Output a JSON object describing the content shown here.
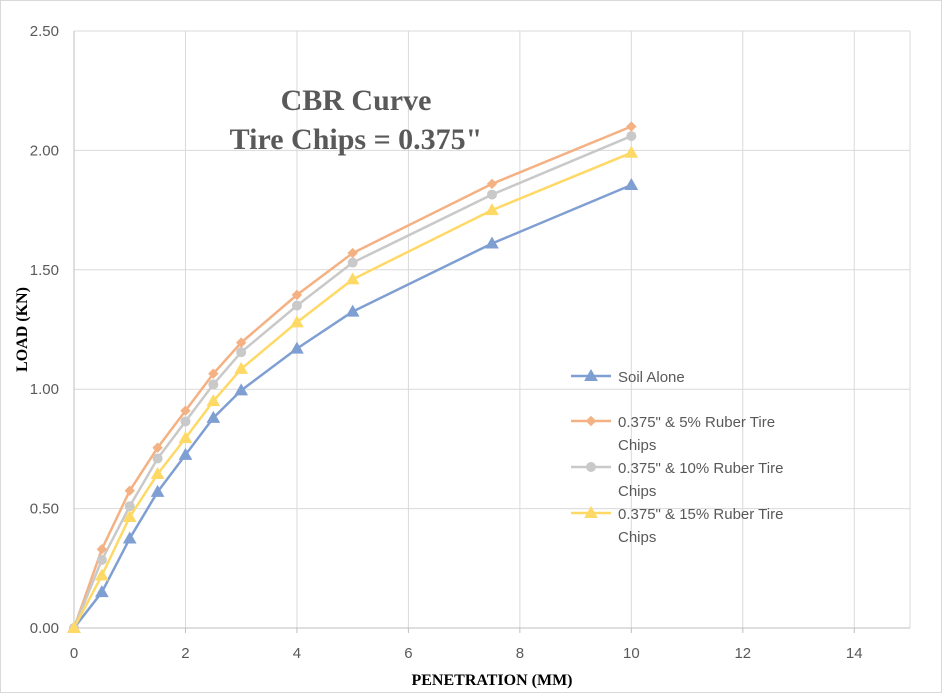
{
  "chart_data": {
    "type": "line",
    "title_lines": [
      "CBR Curve",
      "Tire Chips = 0.375\""
    ],
    "xlabel": "PENETRATION (MM)",
    "ylabel": "LOAD  (KN)",
    "xlim": [
      0,
      15
    ],
    "ylim": [
      0,
      2.5
    ],
    "x_ticks": [
      0,
      2,
      4,
      6,
      8,
      10,
      12,
      14
    ],
    "x_tick_labels": [
      "0",
      "2",
      "4",
      "6",
      "8",
      "10",
      "12",
      "14"
    ],
    "y_ticks": [
      0,
      0.5,
      1.0,
      1.5,
      2.0,
      2.5
    ],
    "y_tick_labels": [
      "0.00",
      "0.50",
      "1.00",
      "1.50",
      "2.00",
      "2.50"
    ],
    "grid": true,
    "legend_position": "right",
    "x": [
      0,
      0.5,
      1,
      1.5,
      2,
      2.5,
      3,
      4,
      5,
      7.5,
      10
    ],
    "series": [
      {
        "name": "Soil Alone",
        "color": "#7f9fd3",
        "marker": "triangle",
        "values": [
          0,
          0.15,
          0.375,
          0.57,
          0.725,
          0.88,
          0.995,
          1.17,
          1.325,
          1.61,
          1.855
        ]
      },
      {
        "name": "0.375\" & 5% Ruber Tire Chips",
        "legend_lines": [
          "0.375\" & 5% Ruber Tire",
          "Chips"
        ],
        "color": "#f4b183",
        "marker": "diamond",
        "values": [
          0,
          0.33,
          0.575,
          0.755,
          0.91,
          1.065,
          1.195,
          1.395,
          1.57,
          1.86,
          2.1
        ]
      },
      {
        "name": "0.375\" & 10% Ruber Tire Chips",
        "legend_lines": [
          "0.375\" & 10% Ruber Tire",
          "Chips"
        ],
        "color": "#c9c9c9",
        "marker": "circle",
        "values": [
          0,
          0.285,
          0.51,
          0.71,
          0.865,
          1.02,
          1.155,
          1.35,
          1.53,
          1.815,
          2.06
        ]
      },
      {
        "name": "0.375\" & 15% Ruber Tire Chips",
        "legend_lines": [
          "0.375\" & 15% Ruber Tire",
          "Chips"
        ],
        "color": "#ffd966",
        "marker": "triangle",
        "values": [
          0,
          0.22,
          0.465,
          0.645,
          0.795,
          0.95,
          1.085,
          1.28,
          1.46,
          1.75,
          1.99
        ]
      }
    ]
  }
}
